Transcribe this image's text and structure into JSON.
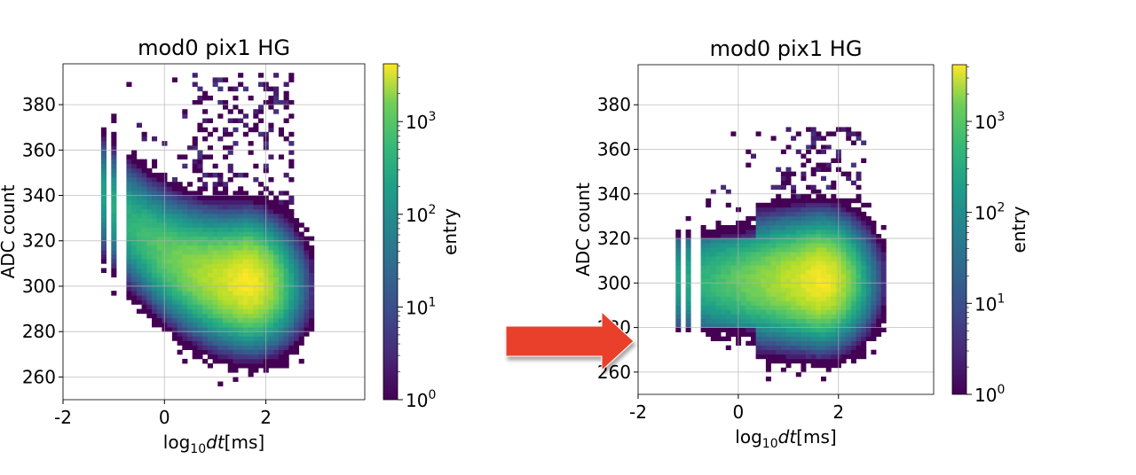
{
  "chart_data": [
    {
      "type": "heatmap",
      "title": "mod0 pix1 HG",
      "xlabel": {
        "prefix": "log",
        "sub": "10",
        "var": "dt",
        "unit": "[ms]"
      },
      "ylabel": "ADC count",
      "xlim": [
        -2,
        3.95
      ],
      "ylim": [
        250,
        398
      ],
      "xticks": [
        "-2",
        "0",
        "2"
      ],
      "xtick_values": [
        -2,
        0,
        2
      ],
      "yticks": [
        "260",
        "280",
        "300",
        "320",
        "340",
        "360",
        "380"
      ],
      "ytick_values": [
        260,
        280,
        300,
        320,
        340,
        360,
        380
      ],
      "grid": true,
      "bin_width": {
        "x": 0.1,
        "y": 2
      },
      "colorbar": {
        "label": "entry",
        "scale": "log",
        "range": [
          1,
          4200
        ],
        "ticks": [
          {
            "base": "10",
            "exp": "0",
            "value": 1
          },
          {
            "base": "10",
            "exp": "1",
            "value": 10
          },
          {
            "base": "10",
            "exp": "2",
            "value": 100
          },
          {
            "base": "10",
            "exp": "3",
            "value": 1000
          }
        ]
      },
      "distribution": {
        "shape": "diagonal band, falling ADC with increasing dt",
        "x_range": [
          -1.5,
          2.9
        ],
        "discrete_columns_below": -0.75,
        "discrete_columns": [
          -1.45,
          -1.2,
          -0.95
        ],
        "peak": {
          "x": 1.6,
          "y": 302,
          "count": 4000
        },
        "center_curve": "y = 302 + 4.8*(1.6-x)^2 for x<1.6, 302 - 2*(x-1.6) beyond",
        "y_sigma": 9,
        "outlier_region": {
          "x": [
            -1.0,
            2.6
          ],
          "y": [
            328,
            392
          ]
        }
      }
    },
    {
      "type": "heatmap",
      "title": "mod0 pix1 HG",
      "xlabel": {
        "prefix": "log",
        "sub": "10",
        "var": "dt",
        "unit": "[ms]"
      },
      "ylabel": "ADC count",
      "xlim": [
        -2,
        3.9
      ],
      "ylim": [
        250,
        398
      ],
      "xticks": [
        "-2",
        "0",
        "2"
      ],
      "xtick_values": [
        -2,
        0,
        2
      ],
      "yticks": [
        "260",
        "280",
        "300",
        "320",
        "340",
        "360",
        "380"
      ],
      "ytick_values": [
        260,
        280,
        300,
        320,
        340,
        360,
        380
      ],
      "grid": true,
      "bin_width": {
        "x": 0.1,
        "y": 2
      },
      "colorbar": {
        "label": "entry",
        "scale": "log",
        "range": [
          1,
          4200
        ],
        "ticks": [
          {
            "base": "10",
            "exp": "0",
            "value": 1
          },
          {
            "base": "10",
            "exp": "1",
            "value": 10
          },
          {
            "base": "10",
            "exp": "2",
            "value": 100
          },
          {
            "base": "10",
            "exp": "3",
            "value": 1000
          }
        ]
      },
      "distribution": {
        "shape": "horizontal band (corrected), flat ADC vs dt",
        "x_range": [
          -1.5,
          2.9
        ],
        "discrete_columns_below": -0.75,
        "discrete_columns": [
          -1.45,
          -1.2,
          -0.95
        ],
        "peak": {
          "x": 1.6,
          "y": 301,
          "count": 4000
        },
        "center_curve": "y = 301",
        "y_sigma": 9,
        "outlier_region": {
          "x": [
            -0.9,
            2.6
          ],
          "y": [
            328,
            368
          ]
        }
      }
    }
  ],
  "annotation": {
    "arrow": "right",
    "color": "#e8402a"
  }
}
